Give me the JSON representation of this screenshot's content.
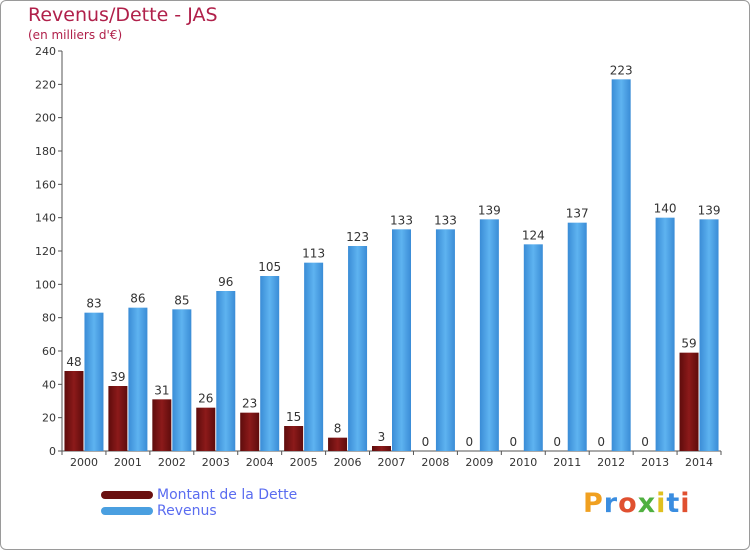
{
  "header": {
    "title": "Revenus/Dette - JAS",
    "subtitle": "(en milliers d'€)"
  },
  "colors": {
    "dette": "#7a1414",
    "revenus": "#4a9fe0",
    "title": "#b0204a",
    "legend_text": "#5a6cf0"
  },
  "legend": {
    "items": [
      {
        "label": "Montant de la Dette",
        "color": "#7a1414"
      },
      {
        "label": "Revenus",
        "color": "#4a9fe0"
      }
    ]
  },
  "logo": {
    "text": "Proxiti",
    "letter_colors": [
      "#f0a020",
      "#3a8de0",
      "#e05030",
      "#50b040",
      "#e0c020",
      "#3a8de0",
      "#e05030"
    ]
  },
  "chart_data": {
    "type": "bar",
    "categories": [
      "2000",
      "2001",
      "2002",
      "2003",
      "2004",
      "2005",
      "2006",
      "2007",
      "2008",
      "2009",
      "2010",
      "2011",
      "2012",
      "2013",
      "2014"
    ],
    "series": [
      {
        "name": "Montant de la Dette",
        "values": [
          48,
          39,
          31,
          26,
          23,
          15,
          8,
          3,
          0,
          0,
          0,
          0,
          0,
          0,
          59
        ]
      },
      {
        "name": "Revenus",
        "values": [
          83,
          86,
          85,
          96,
          105,
          113,
          123,
          133,
          133,
          139,
          124,
          137,
          223,
          140,
          139
        ]
      }
    ],
    "ylim": [
      0,
      240
    ],
    "yticks": [
      0,
      20,
      40,
      60,
      80,
      100,
      120,
      140,
      160,
      180,
      200,
      220,
      240
    ],
    "grid": false,
    "legend_position": "bottom-left"
  }
}
